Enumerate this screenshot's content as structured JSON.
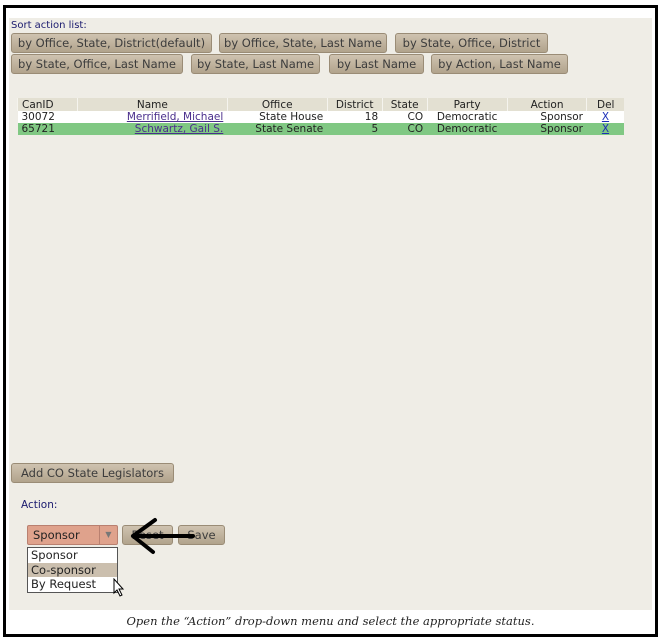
{
  "sort": {
    "label": "Sort action list:",
    "buttons": [
      "by Office, State, District(default)",
      "by Office, State, Last Name",
      "by State, Office, District",
      "by State, Office, Last Name",
      "by State, Last Name",
      "by Last Name",
      "by Action, Last Name"
    ]
  },
  "table": {
    "headers": [
      "CanID",
      "Name",
      "Office",
      "District",
      "State",
      "Party",
      "Action",
      "Del"
    ],
    "rows": [
      {
        "canid": "30072",
        "name": "Merrifield, Michael",
        "office": "State House",
        "district": "18",
        "state": "CO",
        "party": "Democratic",
        "action": "Sponsor",
        "del": "X"
      },
      {
        "canid": "65721",
        "name": "Schwartz, Gail S.",
        "office": "State Senate",
        "district": "5",
        "state": "CO",
        "party": "Democratic",
        "action": "Sponsor",
        "del": "X"
      }
    ],
    "row_colors": [
      "#ffffff",
      "#80c883"
    ]
  },
  "add_button": "Add CO State Legislators",
  "action": {
    "label": "Action:",
    "selected": "Sponsor",
    "options": [
      "Sponsor",
      "Co-sponsor",
      "By Request"
    ],
    "highlighted": "Co-sponsor",
    "reset": "Reset",
    "save": "Save"
  },
  "caption": "Open the “Action” drop-down menu and select the appropriate status."
}
